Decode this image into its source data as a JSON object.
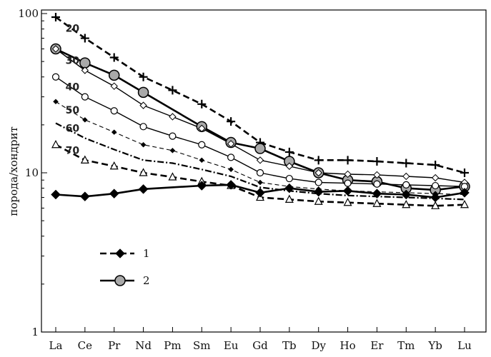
{
  "chart_data": {
    "type": "line",
    "ylabel": "порода/хондрит",
    "y_scale": "log",
    "ylim": [
      1,
      100
    ],
    "y_ticks": [
      "1",
      "10",
      "100"
    ],
    "categories": [
      "La",
      "Ce",
      "Pr",
      "Nd",
      "Pm",
      "Sm",
      "Eu",
      "Gd",
      "Tb",
      "Dy",
      "Ho",
      "Er",
      "Tm",
      "Yb",
      "Lu"
    ],
    "series": [
      {
        "label": "20",
        "style": "dashed-bold",
        "marker": "plus",
        "values": [
          95,
          70,
          53,
          40,
          33,
          27,
          21,
          15.5,
          13.5,
          12,
          12,
          11.8,
          11.5,
          11.2,
          10
        ]
      },
      {
        "label": "",
        "style": "solid-bold",
        "marker": "gray-circle",
        "values": [
          60,
          49,
          41,
          32,
          null,
          19.5,
          15.5,
          14.2,
          11.8,
          10,
          9,
          8.8,
          8,
          7.8,
          8.2
        ]
      },
      {
        "label": "30",
        "style": "solid-thin",
        "marker": "diamond-open",
        "values": [
          60,
          44,
          35,
          26.5,
          22.5,
          19,
          15.2,
          12,
          11,
          10,
          9.8,
          9.7,
          9.5,
          9.3,
          8.7
        ]
      },
      {
        "label": "40",
        "style": "solid-thin",
        "marker": "circle-open",
        "values": [
          40,
          30,
          24.5,
          19.5,
          17,
          15,
          12.5,
          10,
          9.2,
          8.7,
          8.6,
          8.5,
          8.4,
          8.3,
          8.2
        ]
      },
      {
        "label": "50",
        "style": "dashed-thin",
        "marker": "diamond-small",
        "values": [
          28,
          21.5,
          18,
          15,
          13.8,
          12,
          10.5,
          8.7,
          8.2,
          7.9,
          7.7,
          7.6,
          7.5,
          7.4,
          7.3
        ]
      },
      {
        "label": "60",
        "style": "dashdot-bold",
        "marker": "none",
        "values": [
          20.5,
          16.5,
          14,
          12,
          11.5,
          10.5,
          9.5,
          8.1,
          7.7,
          7.4,
          7.2,
          7.1,
          7,
          6.9,
          6.8
        ]
      },
      {
        "label": "70",
        "style": "dashed-bold",
        "marker": "triangle-open",
        "values": [
          15,
          12,
          11,
          10,
          9.4,
          8.8,
          8.3,
          7,
          6.8,
          6.6,
          6.5,
          6.4,
          6.3,
          6.2,
          6.3
        ]
      },
      {
        "label": "",
        "style": "solid-bold",
        "marker": "diamond-filled",
        "values": [
          7.3,
          7.1,
          7.4,
          7.9,
          null,
          8.3,
          8.4,
          7.5,
          8,
          7.6,
          7.7,
          7.4,
          7.3,
          7,
          7.5
        ]
      }
    ],
    "legend": {
      "position": "bottom-left",
      "entries": [
        {
          "label": "1",
          "style": "dashed-bold",
          "marker": "diamond-filled"
        },
        {
          "label": "2",
          "style": "solid-bold",
          "marker": "gray-circle"
        }
      ]
    },
    "grid": false
  }
}
